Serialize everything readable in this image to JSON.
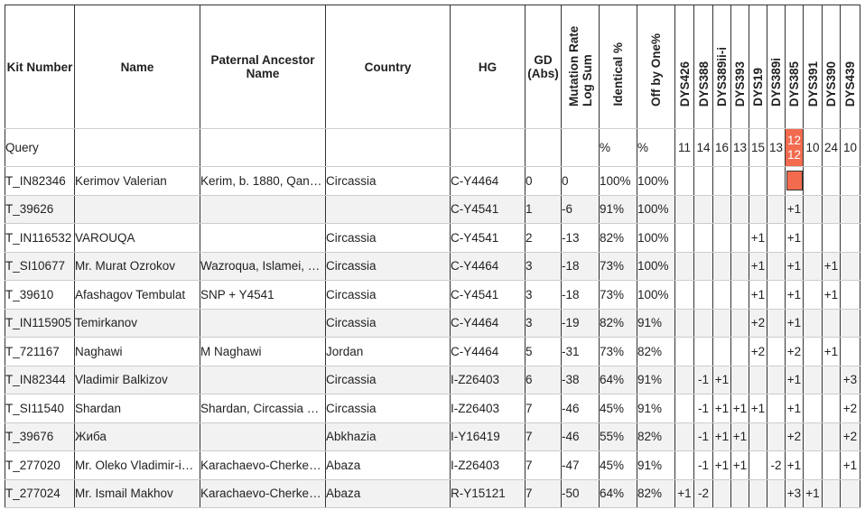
{
  "table": {
    "headers": [
      "Kit Number",
      "Name",
      "Paternal Ancestor Name",
      "Country",
      "HG",
      "GD (Abs)",
      "Mutation Rate Log Sum",
      "Identical %",
      "Off by One%",
      "DYS426",
      "DYS388",
      "DYS389ii-i",
      "DYS393",
      "DYS19",
      "DYS389i",
      "DYS385",
      "DYS391",
      "DYS390",
      "DYS439"
    ],
    "query": [
      "Query",
      null,
      null,
      null,
      null,
      null,
      null,
      "%",
      "%",
      "11",
      "14",
      "16",
      "13",
      "15",
      "13",
      "12 12",
      "10",
      "24",
      "10"
    ],
    "rows": [
      [
        "T_IN82346",
        "Kerimov Valerian",
        "Kerim, b. 1880, Qan…",
        "Circassia",
        "C-Y4464",
        "0",
        "0",
        "100%",
        "100%",
        null,
        null,
        null,
        null,
        null,
        null,
        null,
        null,
        null,
        null
      ],
      [
        "T_39626",
        null,
        null,
        null,
        "C-Y4541",
        "1",
        "-6",
        "91%",
        "100%",
        null,
        null,
        null,
        null,
        null,
        null,
        "+1",
        null,
        null,
        null
      ],
      [
        "T_IN116532",
        "VAROUQA",
        null,
        "Circassia",
        "C-Y4541",
        "2",
        "-13",
        "82%",
        "100%",
        null,
        null,
        null,
        null,
        "+1",
        null,
        "+1",
        null,
        null,
        null
      ],
      [
        "T_SI10677",
        "Mr. Murat Ozrokov",
        "Wazroqua, Islamei, …",
        "Circassia",
        "C-Y4464",
        "3",
        "-18",
        "73%",
        "100%",
        null,
        null,
        null,
        null,
        "+1",
        null,
        "+1",
        null,
        "+1",
        null
      ],
      [
        "T_39610",
        "Afashagov Tembulat",
        "SNP + Y4541",
        "Circassia",
        "C-Y4541",
        "3",
        "-18",
        "73%",
        "100%",
        null,
        null,
        null,
        null,
        "+1",
        null,
        "+1",
        null,
        "+1",
        null
      ],
      [
        "T_IN115905",
        "Temirkanov",
        null,
        "Circassia",
        "C-Y4464",
        "3",
        "-19",
        "82%",
        "91%",
        null,
        null,
        null,
        null,
        "+2",
        null,
        "+1",
        null,
        null,
        null
      ],
      [
        "T_721167",
        "Naghawi",
        "M Naghawi",
        "Jordan",
        "C-Y4464",
        "5",
        "-31",
        "73%",
        "82%",
        null,
        null,
        null,
        null,
        "+2",
        null,
        "+2",
        null,
        "+1",
        null
      ],
      [
        "T_IN82344",
        "Vladimir Balkizov",
        null,
        "Circassia",
        "I-Z26403",
        "6",
        "-38",
        "64%",
        "91%",
        null,
        "-1",
        "+1",
        null,
        null,
        null,
        "+1",
        null,
        null,
        "+3"
      ],
      [
        "T_SI11540",
        "Shardan",
        "Shardan, Circassia …",
        "Circassia",
        "I-Z26403",
        "7",
        "-46",
        "45%",
        "91%",
        null,
        "-1",
        "+1",
        "+1",
        "+1",
        null,
        "+1",
        null,
        null,
        "+2"
      ],
      [
        "T_39676",
        "Жиба",
        null,
        "Abkhazia",
        "I-Y16419",
        "7",
        "-46",
        "55%",
        "82%",
        null,
        "-1",
        "+1",
        "+1",
        null,
        null,
        "+2",
        null,
        null,
        "+2"
      ],
      [
        "T_277020",
        "Mr. Oleko Vladimir-i…",
        "Karachaevo-Cherke…",
        "Abaza",
        "I-Z26403",
        "7",
        "-47",
        "45%",
        "91%",
        null,
        "-1",
        "+1",
        "+1",
        null,
        "-2",
        "+1",
        null,
        null,
        "+1"
      ],
      [
        "T_277024",
        "Mr. Ismail Makhov",
        "Karachaevo-Cherke…",
        "Abaza",
        "R-Y15121",
        "7",
        "-50",
        "64%",
        "82%",
        "+1",
        "-2",
        null,
        null,
        null,
        null,
        "+3",
        "+1",
        null,
        null
      ]
    ]
  }
}
